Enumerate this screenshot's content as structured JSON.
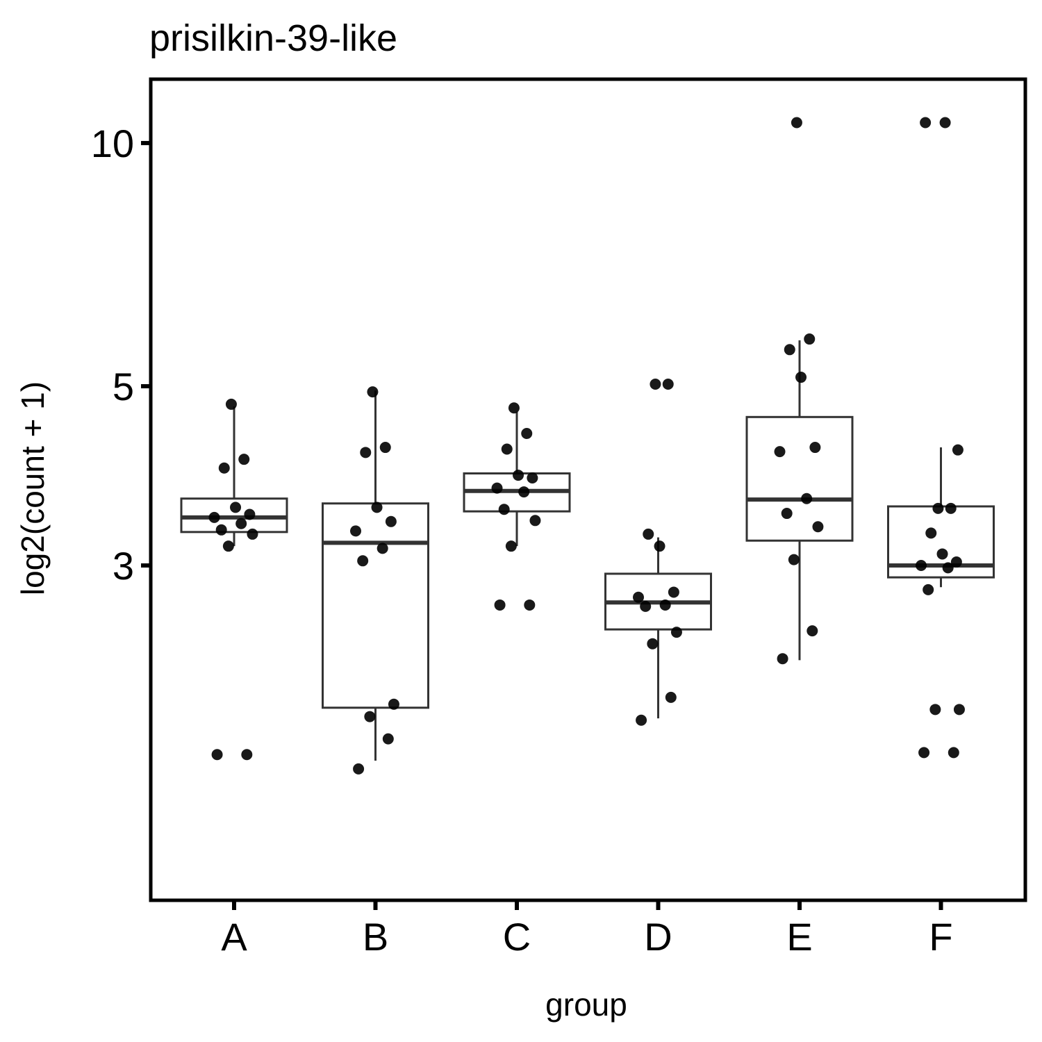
{
  "chart_data": {
    "type": "boxplot",
    "title": "prisilkin-39-like",
    "xlabel": "group",
    "ylabel": "log2(count + 1)",
    "y_scale": "log10",
    "yticks": [
      3,
      5,
      10
    ],
    "ylim": [
      1.59,
      10.85
    ],
    "grid": false,
    "legend": "none",
    "categories": [
      "A",
      "B",
      "C",
      "D",
      "E",
      "F"
    ],
    "boxes": [
      {
        "group": "A",
        "whisker_low": 3.17,
        "q1": 3.3,
        "median": 3.44,
        "q3": 3.63,
        "whisker_high": 4.72
      },
      {
        "group": "B",
        "whisker_low": 1.72,
        "q1": 2.0,
        "median": 3.2,
        "q3": 3.58,
        "whisker_high": 4.94
      },
      {
        "group": "C",
        "whisker_low": 3.17,
        "q1": 3.5,
        "median": 3.71,
        "q3": 3.9,
        "whisker_high": 4.65
      },
      {
        "group": "D",
        "whisker_low": 1.94,
        "q1": 2.5,
        "median": 2.7,
        "q3": 2.93,
        "whisker_high": 3.25
      },
      {
        "group": "E",
        "whisker_low": 2.29,
        "q1": 3.22,
        "median": 3.62,
        "q3": 4.58,
        "whisker_high": 5.7
      },
      {
        "group": "F",
        "whisker_low": 2.82,
        "q1": 2.9,
        "median": 3.0,
        "q3": 3.55,
        "whisker_high": 4.2
      }
    ],
    "points": [
      {
        "group": "A",
        "values": [
          1.75,
          1.75,
          3.17,
          3.28,
          3.32,
          3.38,
          3.44,
          3.47,
          3.54,
          3.96,
          4.06,
          4.75
        ]
      },
      {
        "group": "B",
        "values": [
          1.68,
          1.83,
          1.95,
          2.02,
          3.04,
          3.15,
          3.31,
          3.4,
          3.54,
          4.14,
          4.2,
          4.92
        ]
      },
      {
        "group": "C",
        "values": [
          2.68,
          2.68,
          3.17,
          3.41,
          3.52,
          3.7,
          3.74,
          3.85,
          3.88,
          4.18,
          4.37,
          4.7
        ]
      },
      {
        "group": "D",
        "values": [
          1.93,
          2.06,
          2.4,
          2.48,
          2.67,
          2.68,
          2.74,
          2.78,
          3.17,
          3.28,
          5.03,
          5.03
        ]
      },
      {
        "group": "E",
        "values": [
          2.3,
          2.49,
          3.05,
          3.35,
          3.48,
          3.63,
          4.15,
          4.2,
          5.13,
          5.55,
          5.72,
          10.6
        ]
      },
      {
        "group": "F",
        "values": [
          1.76,
          1.76,
          1.99,
          1.99,
          2.8,
          2.98,
          3.0,
          3.03,
          3.1,
          3.29,
          3.53,
          3.53,
          4.17,
          10.6,
          10.6
        ]
      }
    ]
  }
}
